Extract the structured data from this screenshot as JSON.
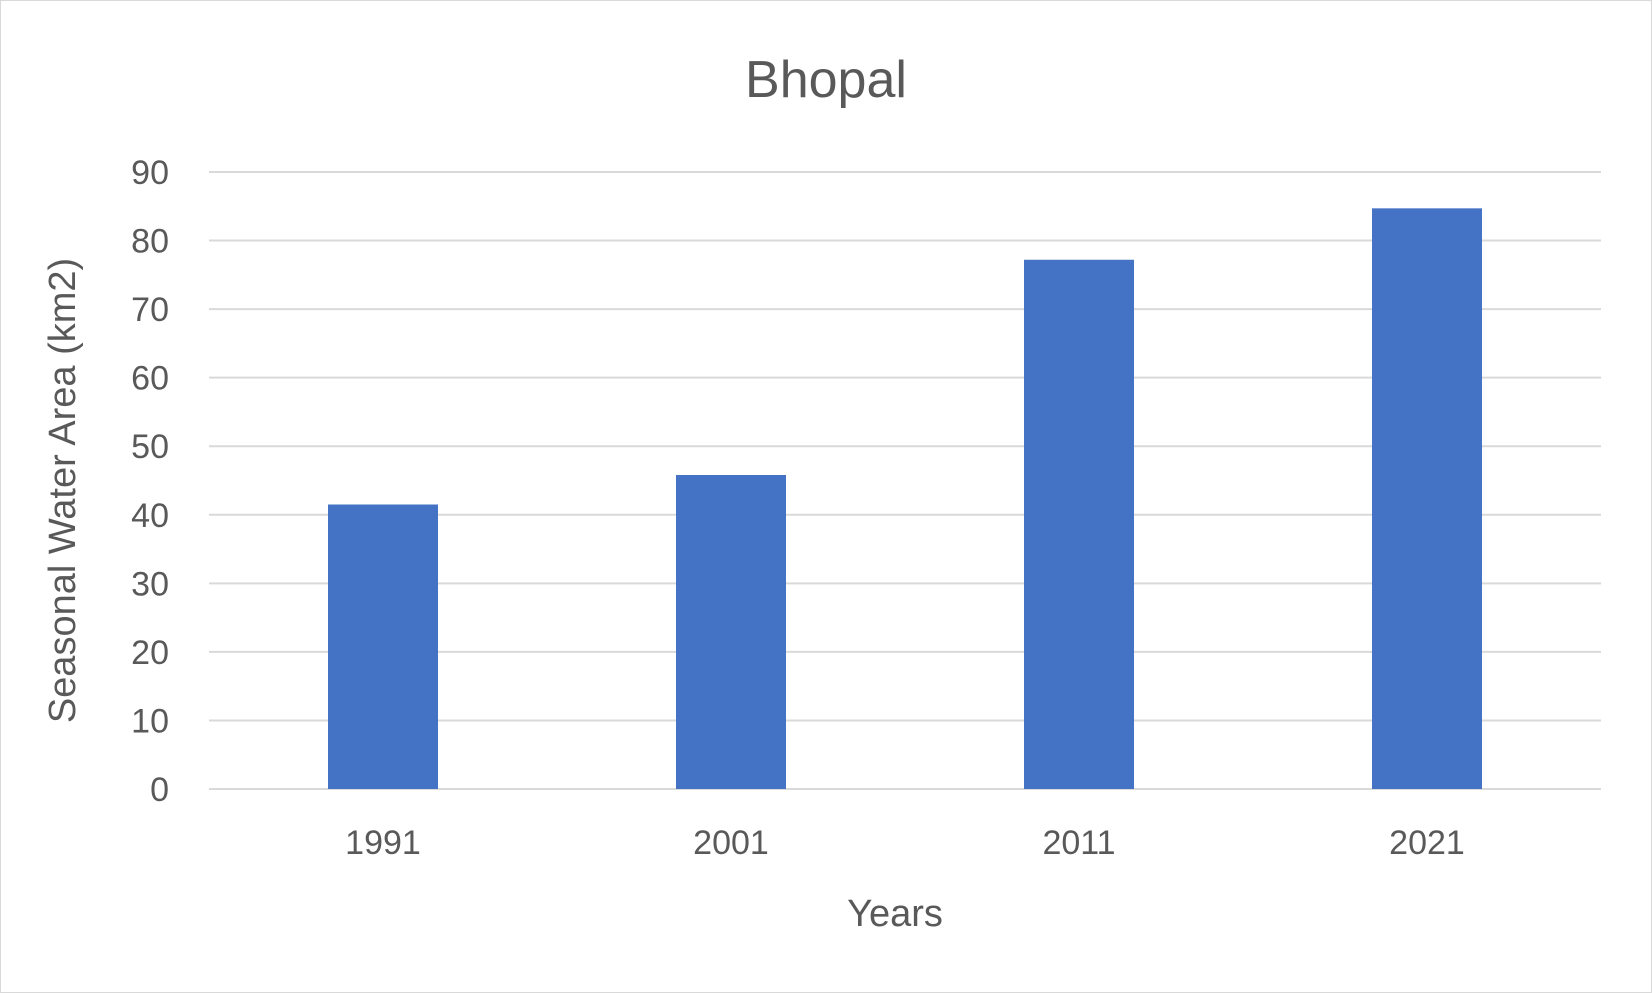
{
  "chart_data": {
    "type": "bar",
    "title": "Bhopal",
    "xlabel": "Years",
    "ylabel": "Seasonal Water Area  (km2)",
    "categories": [
      "1991",
      "2001",
      "2011",
      "2021"
    ],
    "values": [
      41.5,
      45.8,
      77.2,
      84.7
    ],
    "ylim": [
      0,
      90
    ],
    "yticks": [
      0,
      10,
      20,
      30,
      40,
      50,
      60,
      70,
      80,
      90
    ],
    "grid": true,
    "legend": "none",
    "bar_color": "#4472c4"
  }
}
